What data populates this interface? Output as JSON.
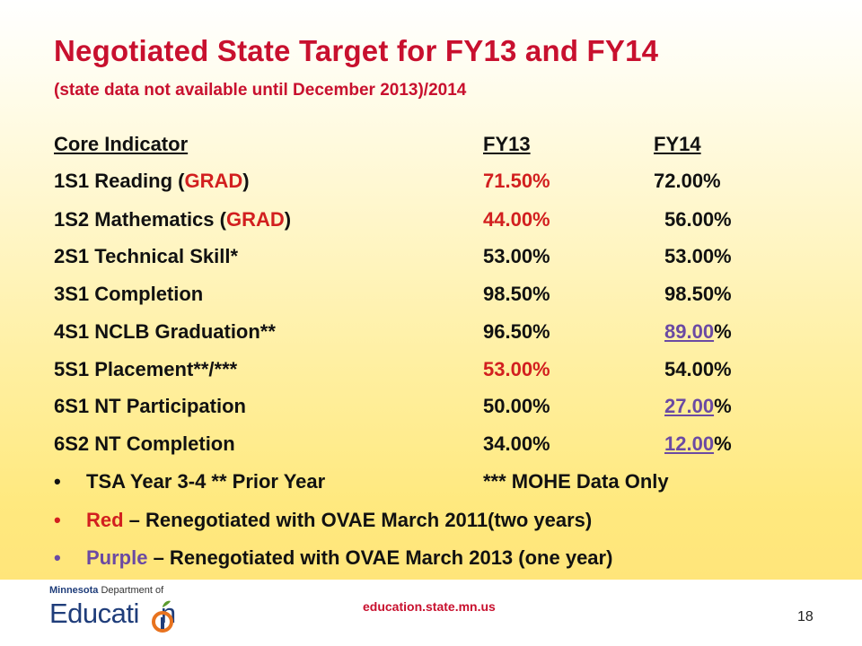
{
  "slide": {
    "title": "Negotiated State Target for FY13 and FY14",
    "subtitle": "(state data not available until December 2013)/2014"
  },
  "table": {
    "headers": {
      "indicator": "Core Indicator",
      "fy13": "FY13",
      "fy14": "FY14"
    },
    "rows": [
      {
        "label": "1S1  Reading (",
        "highlight": "GRAD",
        "suffix": ")",
        "fy13": "71.50%",
        "fy14": "72.00%"
      },
      {
        "label": "1S2  Mathematics (",
        "highlight": "GRAD",
        "suffix": ")",
        "fy13": "44.00%",
        "fy14": "56.00%"
      },
      {
        "label": "2S1  Technical Skill*",
        "fy13": "53.00%",
        "fy14": "53.00%"
      },
      {
        "label": "3S1  Completion",
        "fy13": "98.50%",
        "fy14": "98.50%"
      },
      {
        "label": "4S1  NCLB Graduation**",
        "fy13": "96.50%",
        "fy14_num": "89.00",
        "fy14_pct": "%"
      },
      {
        "label": "5S1  Placement**/***",
        "fy13": "53.00%",
        "fy14": "54.00%"
      },
      {
        "label": "6S1  NT Participation",
        "fy13": "50.00%",
        "fy14_num": "27.00",
        "fy14_pct": "%"
      },
      {
        "label": "6S2  NT Completion",
        "fy13": "34.00%",
        "fy14_num": "12.00",
        "fy14_pct": "%"
      }
    ]
  },
  "notes": [
    {
      "bullet": "•",
      "left": "TSA Year 3-4    ** Prior Year",
      "right": "*** MOHE Data Only"
    },
    {
      "bullet": "•",
      "keyword": "Red",
      "text": " – Renegotiated with OVAE March 2011(two years)"
    },
    {
      "bullet": "•",
      "keyword": "Purple",
      "text": " – Renegotiated with OVAE March 2013 (one year)"
    }
  ],
  "footer": {
    "logo_line1_state": "Minnesota",
    "logo_line1_dept": " Department of",
    "logo_line2": "Educati",
    "logo_line2_end": "n",
    "url": "education.state.mn.us",
    "page_number": "18"
  },
  "colors": {
    "title": "#c8102e",
    "red_values": "#d21f1f",
    "purple_values": "#6b4aa3",
    "logo_blue": "#1f3d7a",
    "logo_green": "#5a9a2c",
    "logo_orange": "#e8731f"
  }
}
